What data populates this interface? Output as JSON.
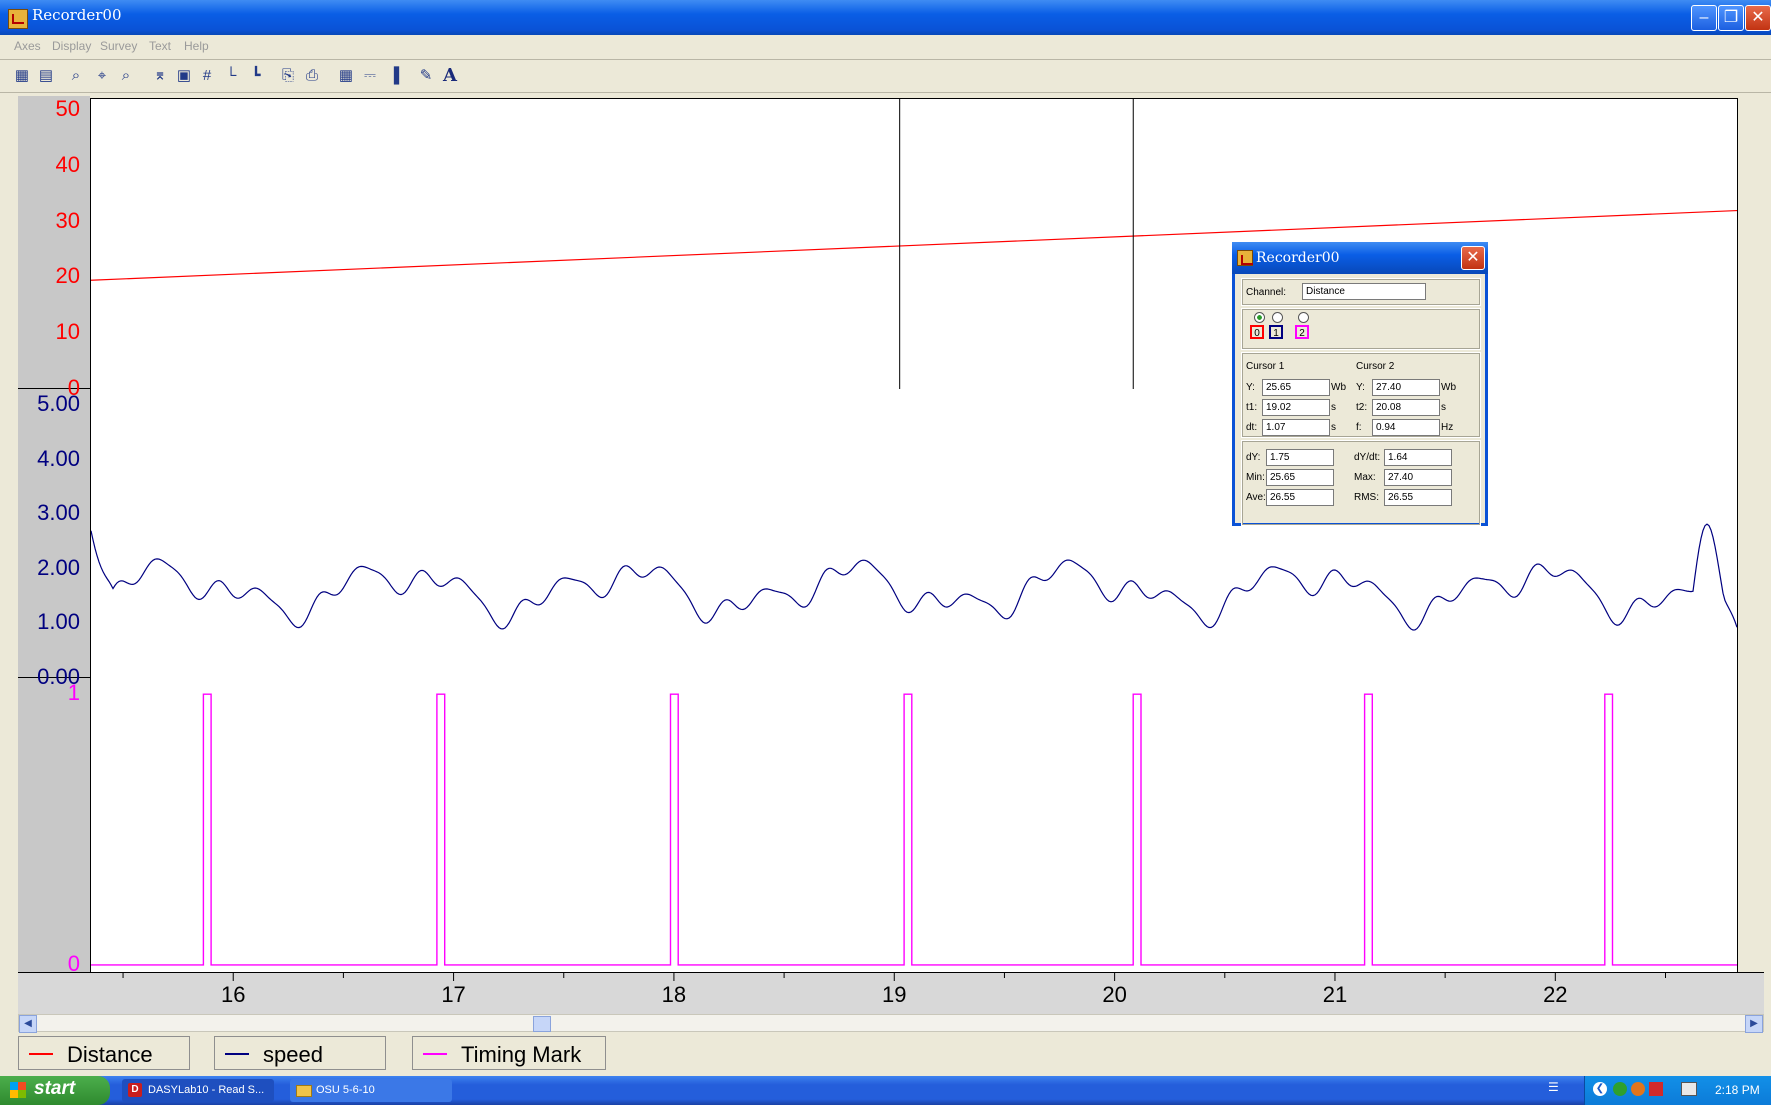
{
  "window": {
    "title": "Recorder00"
  },
  "menu": [
    "Axes",
    "Display",
    "Survey",
    "Text",
    "Help"
  ],
  "toolbar_icons": [
    "scale-icon",
    "scale-alt-icon",
    "zoom-in-icon",
    "zoom-xy-icon",
    "zoom-out-icon",
    "cursor-icon",
    "save-icon",
    "grid-icon",
    "x-axis-icon",
    "y-axis-icon",
    "copy-icon",
    "print-icon",
    "table-view-icon",
    "chart-view-icon",
    "bar-view-icon",
    "brush-icon",
    "text-icon"
  ],
  "toolbar_text_glyph": "A",
  "chart_data": {
    "type": "line",
    "x_ticks": [
      "16",
      "17",
      "18",
      "19",
      "20",
      "21",
      "22"
    ],
    "xlim": [
      15.35,
      22.82
    ],
    "tracks": [
      {
        "name": "Distance",
        "color": "#ff0000",
        "yticks": [
          "50",
          "40",
          "30",
          "20",
          "10",
          "0"
        ],
        "ylim": [
          0,
          52
        ],
        "x": [
          15.35,
          22.82
        ],
        "y": [
          19.5,
          32.0
        ]
      },
      {
        "name": "speed",
        "color": "#000080",
        "yticks": [
          "5.00",
          "4.00",
          "3.00",
          "2.00",
          "1.00",
          "0.00"
        ],
        "ylim": [
          0,
          5.3
        ]
      },
      {
        "name": "Timing Mark",
        "color": "#ff00ff",
        "yticks": [
          "1",
          "0"
        ],
        "ylim": [
          -0.03,
          1.06
        ],
        "pulses": [
          15.86,
          16.92,
          17.98,
          19.04,
          20.08,
          21.13,
          22.22
        ],
        "pulse_width": 0.035
      }
    ],
    "cursors": [
      19.02,
      20.08
    ]
  },
  "legend": [
    {
      "label": "Distance",
      "color": "#ff0000"
    },
    {
      "label": "speed",
      "color": "#000080"
    },
    {
      "label": "Timing Mark",
      "color": "#ff00ff"
    }
  ],
  "dialog": {
    "title": "Recorder00",
    "channel_label": "Channel:",
    "channel_value": "Distance",
    "channels": [
      "0",
      "1",
      "2"
    ],
    "cursor1_title": "Cursor 1",
    "cursor2_title": "Cursor 2",
    "c1": {
      "y_label": "Y:",
      "y": "25.65",
      "y_unit": "Wb",
      "t_label": "t1:",
      "t": "19.02",
      "t_unit": "s",
      "dt_label": "dt:",
      "dt": "1.07",
      "dt_unit": "s"
    },
    "c2": {
      "y_label": "Y:",
      "y": "27.40",
      "y_unit": "Wb",
      "t_label": "t2:",
      "t": "20.08",
      "t_unit": "s",
      "f_label": "f:",
      "f": "0.94",
      "f_unit": "Hz"
    },
    "stats": {
      "dy_label": "dY:",
      "dy": "1.75",
      "dydt_label": "dY/dt:",
      "dydt": "1.64",
      "min_label": "Min:",
      "min": "25.65",
      "max_label": "Max:",
      "max": "27.40",
      "ave_label": "Ave:",
      "ave": "26.55",
      "rms_label": "RMS:",
      "rms": "26.55"
    }
  },
  "taskbar": {
    "start": "start",
    "tasks": [
      "DASYLab10 - Read S...",
      "OSU 5-6-10"
    ],
    "clock": "2:18 PM"
  }
}
